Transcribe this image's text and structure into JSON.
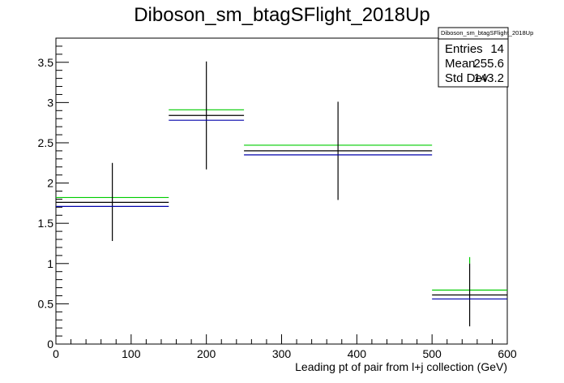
{
  "chart_data": {
    "type": "scatter",
    "title": "Diboson_sm_btagSFlight_2018Up",
    "xlabel": "Leading pt of pair from l+j collection (GeV)",
    "ylabel": "",
    "xlim": [
      0,
      600
    ],
    "ylim": [
      0,
      3.8
    ],
    "x_ticks": [
      0,
      100,
      200,
      300,
      400,
      500,
      600
    ],
    "y_ticks": [
      0,
      0.5,
      1,
      1.5,
      2,
      2.5,
      3,
      3.5
    ],
    "x_tick_labels": [
      "0",
      "100",
      "200",
      "300",
      "400",
      "500",
      "600"
    ],
    "y_tick_labels": [
      "0",
      "0.5",
      "1",
      "1.5",
      "2",
      "2.5",
      "3",
      "3.5"
    ],
    "grid": false,
    "bins": [
      {
        "x_low": 0,
        "x_high": 150,
        "x_center": 75
      },
      {
        "x_low": 150,
        "x_high": 250,
        "x_center": 200
      },
      {
        "x_low": 250,
        "x_high": 500,
        "x_center": 375
      },
      {
        "x_low": 500,
        "x_high": 600,
        "x_center": 550
      }
    ],
    "series": [
      {
        "color": "#00cc00",
        "values": [
          1.82,
          2.91,
          2.47,
          0.67
        ],
        "err_low": [
          1.82,
          2.91,
          2.47,
          1.0
        ],
        "err_high": [
          1.82,
          2.91,
          2.47,
          1.08
        ]
      },
      {
        "color": "#000000",
        "values": [
          1.76,
          2.84,
          2.4,
          0.61
        ],
        "err_low": [
          1.28,
          2.17,
          1.79,
          0.22
        ],
        "err_high": [
          2.25,
          3.51,
          3.01,
          1.0
        ]
      },
      {
        "color": "#0000aa",
        "values": [
          1.71,
          2.78,
          2.35,
          0.56
        ],
        "err_low": [
          1.71,
          2.78,
          2.35,
          0.56
        ],
        "err_high": [
          1.71,
          2.78,
          2.35,
          0.56
        ]
      }
    ]
  },
  "stats": {
    "name": "Diboson_sm_btagSFlight_2018Up",
    "entries_label": "Entries",
    "entries_value": "14",
    "mean_label": "Mean",
    "mean_value": "255.6",
    "std_label": "Std Dev",
    "std_value": "143.2"
  }
}
